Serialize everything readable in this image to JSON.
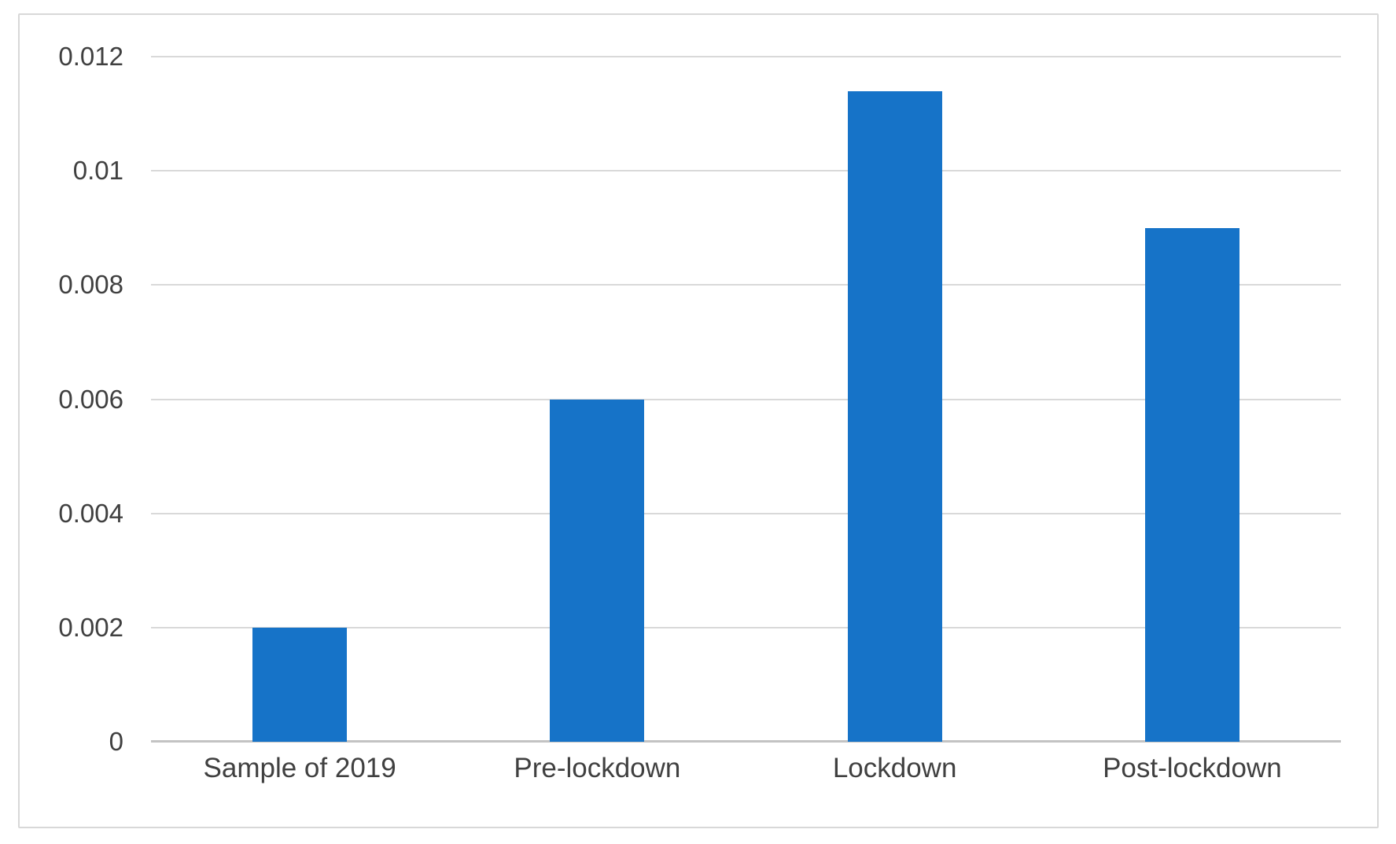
{
  "chart_data": {
    "type": "bar",
    "categories": [
      "Sample of 2019",
      "Pre-lockdown",
      "Lockdown",
      "Post-lockdown"
    ],
    "values": [
      0.002,
      0.006,
      0.0114,
      0.009
    ],
    "xlabel": "",
    "ylabel": "",
    "ylim": [
      0,
      0.012
    ],
    "ytick_values": [
      0,
      0.002,
      0.004,
      0.006,
      0.008,
      0.01,
      0.012
    ],
    "ytick_labels": [
      "0",
      "0.002",
      "0.004",
      "0.006",
      "0.008",
      "0.01",
      "0.012"
    ],
    "grid": true,
    "legend": false,
    "colors": {
      "bar": "#1673c8",
      "gridline": "#d9d9d9",
      "axis_line": "#c3c3c3",
      "text": "#404040",
      "frame_border": "#d8d8d8"
    }
  }
}
